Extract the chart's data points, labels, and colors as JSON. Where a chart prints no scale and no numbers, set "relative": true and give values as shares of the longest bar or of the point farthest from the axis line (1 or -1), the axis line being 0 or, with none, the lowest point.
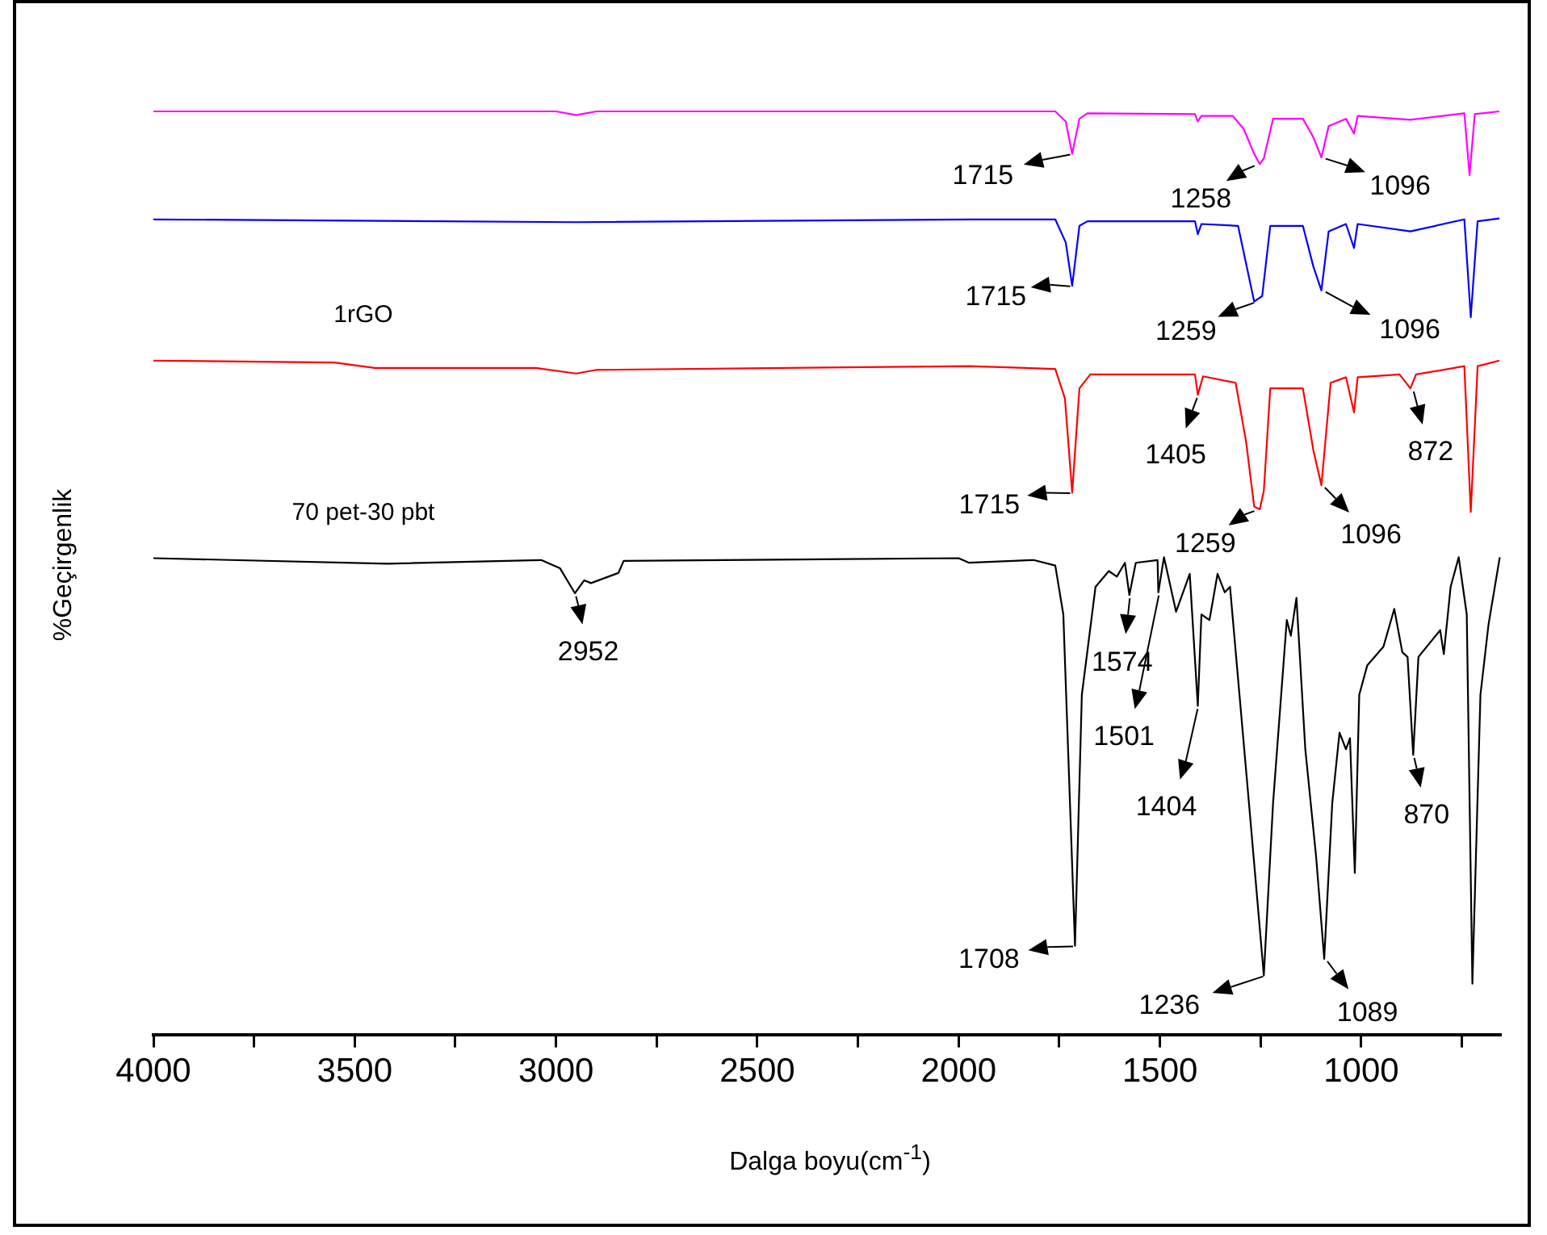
{
  "chart_data": {
    "type": "line",
    "relative": true,
    "xlabel": "Dalga boyu(cm$^{-1}$)",
    "ylabel": "%Geçirgenlik",
    "xlim": [
      4000,
      655
    ],
    "xticks": [
      4000,
      {
        "value": 3750,
        "label": null
      },
      3500,
      {
        "value": 3250,
        "label": null
      },
      3000,
      {
        "value": 2750,
        "label": null
      },
      2500,
      {
        "value": 2250,
        "label": null
      },
      2000,
      {
        "value": 1750,
        "label": null
      },
      1500,
      {
        "value": 1250,
        "label": null
      },
      1000,
      {
        "value": 750,
        "label": null
      }
    ],
    "grid": false,
    "legend": false,
    "marker": "none",
    "line_style": "solid",
    "series": [
      {
        "color": "#ff00ff",
        "x": [
          4000,
          3000,
          2950,
          2900,
          1974,
          1760,
          1734,
          1718,
          1700,
          1680,
          1413,
          1406,
          1397,
          1319,
          1292,
          1266,
          1252,
          1242,
          1219,
          1145,
          1119,
          1099,
          1081,
          1038,
          1018,
          1009,
          878,
          744,
          731,
          718,
          657
        ],
        "values": [
          1.0,
          1.0,
          0.996,
          1.0,
          1.0,
          1.0,
          0.989,
          0.954,
          0.992,
          0.998,
          0.997,
          0.989,
          0.995,
          0.995,
          0.981,
          0.954,
          0.943,
          0.949,
          0.992,
          0.992,
          0.972,
          0.95,
          0.984,
          0.992,
          0.976,
          0.995,
          0.991,
          0.998,
          0.931,
          0.997,
          1.0
        ]
      },
      {
        "color": "#0000ff",
        "x": [
          4000,
          2950,
          1974,
          1760,
          1734,
          1718,
          1700,
          1680,
          1413,
          1406,
          1397,
          1306,
          1286,
          1266,
          1246,
          1226,
          1145,
          1119,
          1099,
          1081,
          1038,
          1018,
          1009,
          878,
          744,
          728,
          711,
          657
        ],
        "values": [
          0.883,
          0.88,
          0.883,
          0.883,
          0.858,
          0.811,
          0.876,
          0.881,
          0.881,
          0.867,
          0.878,
          0.876,
          0.835,
          0.794,
          0.8,
          0.876,
          0.876,
          0.832,
          0.806,
          0.87,
          0.878,
          0.852,
          0.878,
          0.87,
          0.883,
          0.777,
          0.881,
          0.884
        ]
      },
      {
        "name": "1rGO",
        "color": "#ff0000",
        "x": [
          4000,
          3550,
          3450,
          3050,
          2950,
          2900,
          1974,
          1760,
          1736,
          1718,
          1700,
          1673,
          1413,
          1406,
          1393,
          1312,
          1286,
          1266,
          1252,
          1242,
          1226,
          1145,
          1119,
          1099,
          1076,
          1038,
          1018,
          1009,
          905,
          878,
          864,
          744,
          728,
          711,
          657
        ],
        "values": [
          0.73,
          0.728,
          0.722,
          0.722,
          0.716,
          0.72,
          0.724,
          0.721,
          0.689,
          0.587,
          0.7,
          0.715,
          0.715,
          0.693,
          0.713,
          0.706,
          0.642,
          0.572,
          0.569,
          0.589,
          0.7,
          0.7,
          0.633,
          0.595,
          0.706,
          0.712,
          0.674,
          0.712,
          0.715,
          0.7,
          0.715,
          0.724,
          0.566,
          0.724,
          0.73
        ]
      },
      {
        "name": "70 pet-30 pbt",
        "color": "#000000",
        "x": [
          4000,
          3418,
          3037,
          2990,
          2953,
          2930,
          2913,
          2845,
          2832,
          2000,
          1974,
          1814,
          1760,
          1740,
          1711,
          1694,
          1660,
          1627,
          1607,
          1587,
          1576,
          1560,
          1506,
          1504,
          1490,
          1460,
          1426,
          1406,
          1397,
          1377,
          1357,
          1339,
          1326,
          1279,
          1242,
          1219,
          1185,
          1175,
          1161,
          1139,
          1112,
          1092,
          1072,
          1054,
          1038,
          1028,
          1016,
          1005,
          985,
          945,
          918,
          898,
          885,
          871,
          858,
          804,
          795,
          778,
          758,
          738,
          724,
          704,
          684,
          656
        ],
        "values": [
          0.516,
          0.51,
          0.514,
          0.505,
          0.478,
          0.492,
          0.489,
          0.5,
          0.513,
          0.516,
          0.511,
          0.514,
          0.508,
          0.455,
          0.096,
          0.368,
          0.485,
          0.502,
          0.496,
          0.511,
          0.476,
          0.511,
          0.514,
          0.479,
          0.517,
          0.458,
          0.499,
          0.356,
          0.455,
          0.449,
          0.499,
          0.479,
          0.485,
          0.251,
          0.064,
          0.251,
          0.449,
          0.432,
          0.473,
          0.309,
          0.192,
          0.082,
          0.251,
          0.327,
          0.309,
          0.321,
          0.175,
          0.368,
          0.4,
          0.42,
          0.461,
          0.414,
          0.409,
          0.303,
          0.409,
          0.438,
          0.412,
          0.485,
          0.517,
          0.455,
          0.055,
          0.368,
          0.444,
          0.517
        ]
      }
    ],
    "annotations": [
      {
        "text": "1715",
        "x": 1715,
        "y": 0.954
      },
      {
        "text": "1258",
        "x": 1258,
        "y": 0.943
      },
      {
        "text": "1096",
        "x": 1096,
        "y": 0.95
      },
      {
        "text": "1715",
        "x": 1715,
        "y": 0.811
      },
      {
        "text": "1259",
        "x": 1259,
        "y": 0.794
      },
      {
        "text": "1096",
        "x": 1096,
        "y": 0.806
      },
      {
        "text": "1715",
        "x": 1715,
        "y": 0.587
      },
      {
        "text": "1405",
        "x": 1405,
        "y": 0.693
      },
      {
        "text": "1259",
        "x": 1259,
        "y": 0.569
      },
      {
        "text": "1096",
        "x": 1096,
        "y": 0.595
      },
      {
        "text": "872",
        "x": 872,
        "y": 0.7
      },
      {
        "text": "2952",
        "x": 2952,
        "y": 0.478
      },
      {
        "text": "1574",
        "x": 1574,
        "y": 0.476
      },
      {
        "text": "1501",
        "x": 1501,
        "y": 0.479
      },
      {
        "text": "1404",
        "x": 1404,
        "y": 0.356
      },
      {
        "text": "1708",
        "x": 1708,
        "y": 0.096
      },
      {
        "text": "1236",
        "x": 1236,
        "y": 0.064
      },
      {
        "text": "1089",
        "x": 1089,
        "y": 0.082
      },
      {
        "text": "870",
        "x": 870,
        "y": 0.303
      }
    ]
  }
}
